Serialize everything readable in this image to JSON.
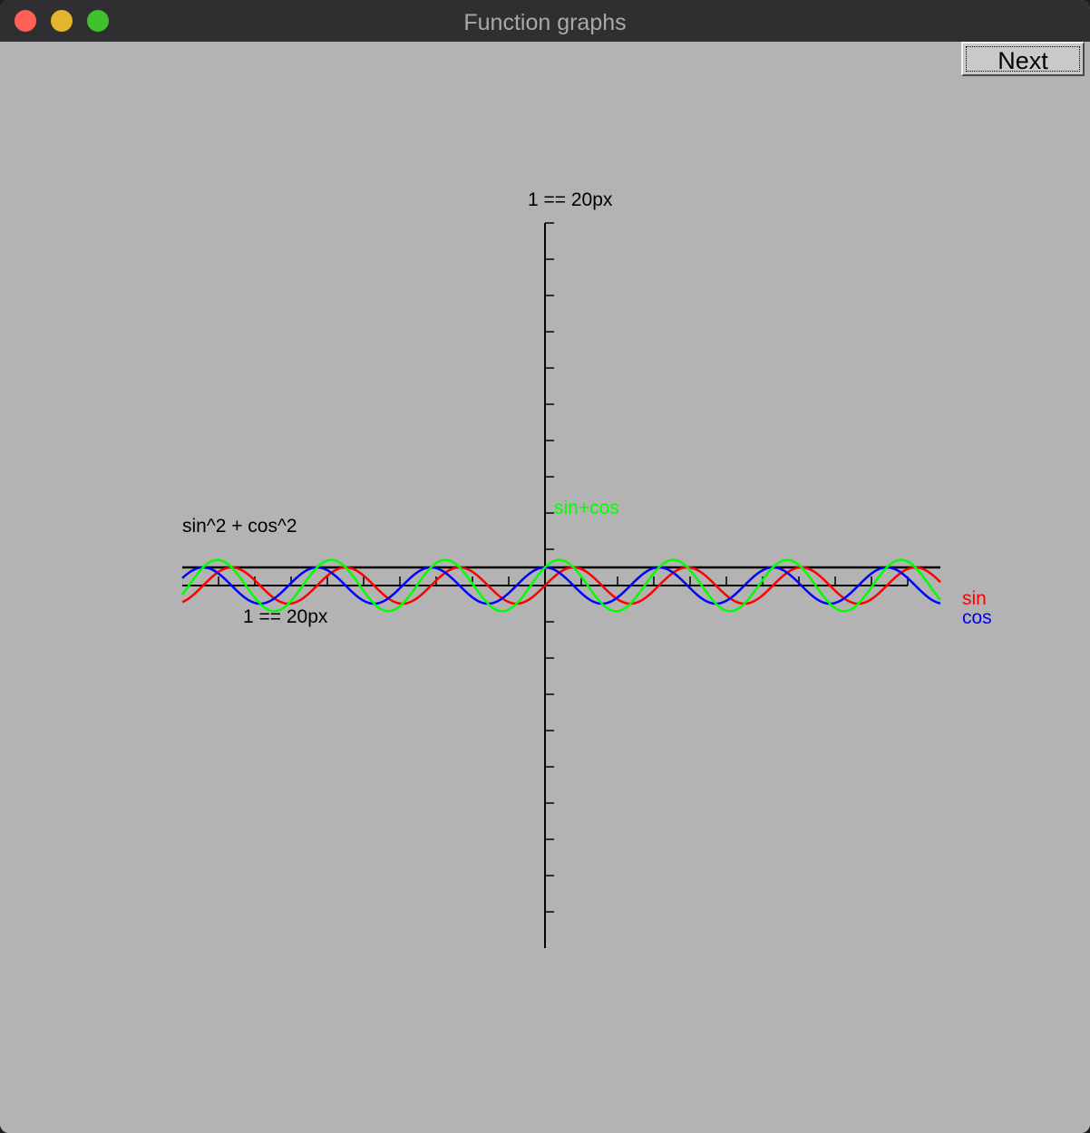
{
  "window": {
    "title": "Function graphs"
  },
  "toolbar": {
    "next_label": "Next"
  },
  "colors": {
    "background": "#b3b3b3",
    "sin": "#ff0000",
    "cos": "#0000ff",
    "sum": "#00ff00",
    "axis": "#000000"
  },
  "chart_data": {
    "type": "line",
    "axes": {
      "x_scale_label": "1 == 20px",
      "y_scale_label": "1 == 20px",
      "x_range": [
        -20,
        20
      ],
      "y_range": [
        -20,
        20
      ],
      "tick_step": 2
    },
    "series": [
      {
        "name": "sin",
        "function": "sin",
        "color": "#ff0000",
        "x_range": [
          -20,
          21.8
        ]
      },
      {
        "name": "cos",
        "function": "cos",
        "color": "#0000ff",
        "x_range": [
          -20,
          21.8
        ]
      },
      {
        "name": "sin+cos",
        "function": "sin+cos",
        "color": "#00ff00",
        "x_range": [
          -20,
          21.8
        ]
      },
      {
        "name": "sin^2 + cos^2",
        "function": "sin^2+cos^2",
        "color": "#000000",
        "x_range": [
          -20,
          21.8
        ]
      }
    ]
  }
}
